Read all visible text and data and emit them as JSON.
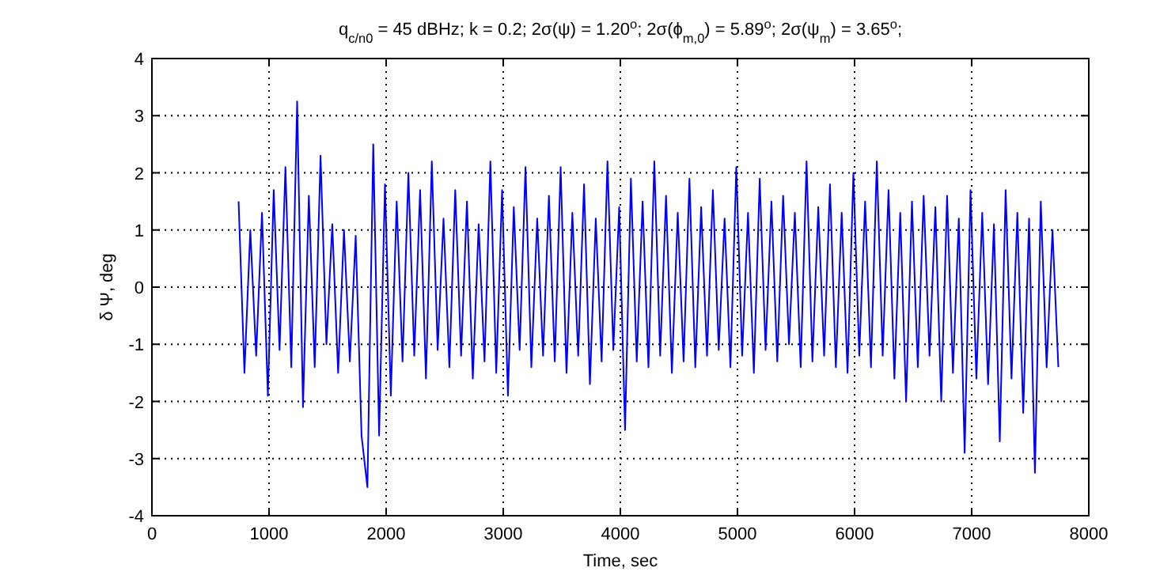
{
  "chart_data": {
    "type": "line",
    "title": "q$_{c/n0}$ = 45 dBHz; k = 0.2; 2σ(ψ) = 1.20$^{o}$; 2σ(ϕ$_{m,0}$) = 5.89$^{o}$; 2σ(ψ$_{m}$) = 3.65$^{o}$;",
    "xlabel": "Time, sec",
    "ylabel": "δ Ψ, deg",
    "x": [
      740,
      790,
      840,
      890,
      940,
      990,
      1040,
      1090,
      1140,
      1190,
      1240,
      1290,
      1340,
      1390,
      1440,
      1490,
      1540,
      1590,
      1640,
      1690,
      1740,
      1790,
      1840,
      1890,
      1940,
      1990,
      2040,
      2090,
      2140,
      2190,
      2240,
      2290,
      2340,
      2390,
      2440,
      2490,
      2540,
      2590,
      2640,
      2690,
      2740,
      2790,
      2840,
      2890,
      2940,
      2990,
      3040,
      3090,
      3140,
      3190,
      3240,
      3290,
      3340,
      3390,
      3440,
      3490,
      3540,
      3590,
      3640,
      3690,
      3740,
      3790,
      3840,
      3890,
      3940,
      3990,
      4040,
      4090,
      4140,
      4190,
      4240,
      4290,
      4340,
      4390,
      4440,
      4490,
      4540,
      4590,
      4640,
      4690,
      4740,
      4790,
      4840,
      4890,
      4940,
      4990,
      5040,
      5090,
      5140,
      5190,
      5240,
      5290,
      5340,
      5390,
      5440,
      5490,
      5540,
      5590,
      5640,
      5690,
      5740,
      5790,
      5840,
      5890,
      5940,
      5990,
      6040,
      6090,
      6140,
      6190,
      6240,
      6290,
      6340,
      6390,
      6440,
      6490,
      6540,
      6590,
      6640,
      6690,
      6740,
      6790,
      6840,
      6890,
      6940,
      6990,
      7040,
      7090,
      7140,
      7190,
      7240,
      7290,
      7340,
      7390,
      7440,
      7490,
      7540,
      7590,
      7640,
      7690,
      7740
    ],
    "series": [
      {
        "color": "#0000ff",
        "values": [
          1.5,
          -1.5,
          1.0,
          -1.2,
          1.3,
          -1.9,
          1.7,
          -1.1,
          2.1,
          -1.4,
          3.25,
          -2.1,
          1.6,
          -1.4,
          2.3,
          -1.0,
          1.1,
          -1.5,
          1.0,
          -1.3,
          0.9,
          -2.6,
          -3.5,
          2.5,
          -2.6,
          1.8,
          -1.9,
          1.5,
          -1.3,
          2.0,
          -1.2,
          1.7,
          -1.6,
          2.2,
          -1.1,
          1.2,
          -1.4,
          1.7,
          -1.2,
          1.5,
          -1.6,
          1.1,
          -1.3,
          2.2,
          -1.5,
          1.7,
          -1.9,
          1.4,
          -1.1,
          2.1,
          -1.4,
          1.2,
          -1.2,
          1.6,
          -1.3,
          2.1,
          -1.5,
          1.3,
          -1.2,
          1.8,
          -1.7,
          1.2,
          -1.3,
          2.2,
          -1.1,
          1.4,
          -2.5,
          1.9,
          -1.3,
          1.5,
          -1.4,
          2.2,
          -1.2,
          1.6,
          -1.5,
          1.3,
          -1.3,
          1.9,
          -1.4,
          1.4,
          -1.2,
          1.7,
          -1.1,
          1.2,
          -1.4,
          2.1,
          -1.2,
          1.3,
          -1.5,
          1.9,
          -1.1,
          1.5,
          -1.3,
          1.6,
          -1.0,
          1.3,
          -1.4,
          2.2,
          -1.3,
          1.4,
          -1.2,
          1.8,
          -1.4,
          1.3,
          -1.5,
          2.0,
          -1.2,
          1.5,
          -1.4,
          2.2,
          -1.2,
          1.7,
          -1.6,
          1.3,
          -2.0,
          1.5,
          -1.4,
          1.6,
          -1.2,
          1.4,
          -2.0,
          1.6,
          -1.5,
          1.2,
          -2.9,
          1.7,
          -1.6,
          1.3,
          -1.7,
          1.1,
          -2.7,
          1.7,
          -1.6,
          1.3,
          -2.2,
          1.2,
          -3.25,
          1.5,
          -1.4,
          1.0,
          -1.4
        ]
      }
    ],
    "xlim": [
      0,
      8000
    ],
    "xticks": [
      0,
      1000,
      2000,
      3000,
      4000,
      5000,
      6000,
      7000,
      8000
    ],
    "ylim": [
      -4,
      4
    ],
    "yticks": [
      -4,
      -3,
      -2,
      -1,
      0,
      1,
      2,
      3,
      4
    ],
    "grid": true,
    "marker": "none",
    "line_style": "solid"
  }
}
